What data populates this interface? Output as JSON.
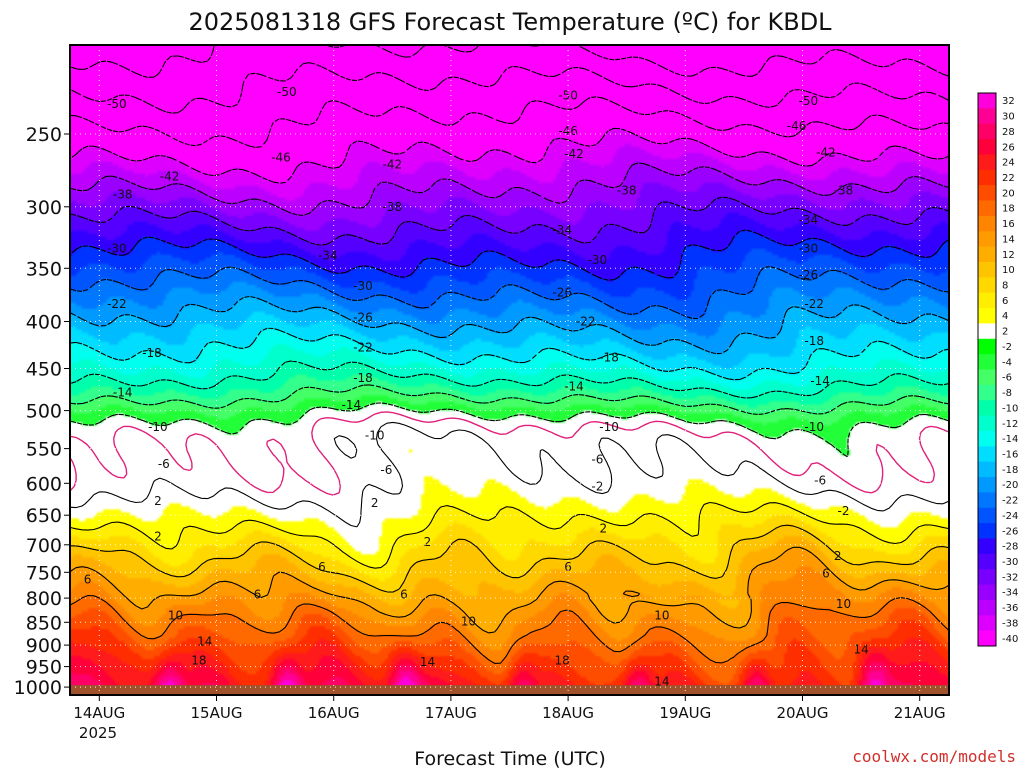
{
  "chart_data": {
    "type": "heatmap",
    "title": "2025081318 GFS Forecast Temperature (ºC) for KBDL",
    "xlabel": "Forecast Time (UTC)",
    "ylabel": "",
    "credit": "coolwx.com/models",
    "x_ticks": [
      "14AUG",
      "15AUG",
      "16AUG",
      "17AUG",
      "18AUG",
      "19AUG",
      "20AUG",
      "21AUG"
    ],
    "x_sublabel": "2025",
    "pressure_ticks": [
      250,
      300,
      350,
      400,
      450,
      500,
      550,
      600,
      650,
      700,
      750,
      800,
      850,
      900,
      950,
      1000
    ],
    "pressure_range": [
      200,
      1020
    ],
    "yscale": "log",
    "grid": "dotted",
    "ground_level_hpa": 1000,
    "colorbar": {
      "placement": "right",
      "levels": [
        32,
        30,
        28,
        26,
        24,
        22,
        20,
        18,
        16,
        14,
        12,
        10,
        8,
        6,
        4,
        2,
        -2,
        -4,
        -6,
        -8,
        -10,
        -12,
        -14,
        -16,
        -18,
        -20,
        -22,
        -24,
        -26,
        -28,
        -30,
        -32,
        -34,
        -36,
        -38,
        -40
      ],
      "colors": [
        "#ff00dd",
        "#ff0095",
        "#ff0066",
        "#ff003a",
        "#ff1b1b",
        "#ff2e00",
        "#ff4d00",
        "#ff6a00",
        "#ff8400",
        "#ff9a00",
        "#ffae00",
        "#ffc400",
        "#ffd800",
        "#ffee00",
        "#ffff00",
        "#ffffff",
        "#00ff00",
        "#22ff38",
        "#44ff66",
        "#33ff8c",
        "#00ffaa",
        "#00ffcc",
        "#00ffee",
        "#00ddff",
        "#00bbff",
        "#0099ff",
        "#0077ff",
        "#0055ff",
        "#0033ff",
        "#3300ff",
        "#5500ff",
        "#7700ff",
        "#9900ff",
        "#bb00ff",
        "#dd00ff",
        "#ff00ff"
      ]
    },
    "contour_levels": [
      -50,
      -46,
      -42,
      -38,
      -34,
      -30,
      -26,
      -22,
      -18,
      -14,
      -10,
      -6,
      -2,
      2,
      6,
      10,
      14,
      18
    ],
    "contour_labels": [
      {
        "t": 0.4,
        "p": 232,
        "v": "-50"
      },
      {
        "t": 1.85,
        "p": 225,
        "v": "-50"
      },
      {
        "t": 4.25,
        "p": 227,
        "v": "-50"
      },
      {
        "t": 6.3,
        "p": 230,
        "v": "-50"
      },
      {
        "t": 1.8,
        "p": 265,
        "v": "-46"
      },
      {
        "t": 4.25,
        "p": 248,
        "v": "-46"
      },
      {
        "t": 6.2,
        "p": 245,
        "v": "-46"
      },
      {
        "t": 0.85,
        "p": 278,
        "v": "-42"
      },
      {
        "t": 2.75,
        "p": 270,
        "v": "-42"
      },
      {
        "t": 4.3,
        "p": 263,
        "v": "-42"
      },
      {
        "t": 6.45,
        "p": 262,
        "v": "-42"
      },
      {
        "t": 0.45,
        "p": 291,
        "v": "-38"
      },
      {
        "t": 2.75,
        "p": 300,
        "v": "-38"
      },
      {
        "t": 4.75,
        "p": 288,
        "v": "-38"
      },
      {
        "t": 6.6,
        "p": 288,
        "v": "-38"
      },
      {
        "t": 2.2,
        "p": 339,
        "v": "-34"
      },
      {
        "t": 4.2,
        "p": 318,
        "v": "-34"
      },
      {
        "t": 6.3,
        "p": 310,
        "v": "-34"
      },
      {
        "t": 0.4,
        "p": 333,
        "v": "-30"
      },
      {
        "t": 2.5,
        "p": 366,
        "v": "-30"
      },
      {
        "t": 4.5,
        "p": 343,
        "v": "-30"
      },
      {
        "t": 6.3,
        "p": 333,
        "v": "-30"
      },
      {
        "t": 2.5,
        "p": 396,
        "v": "-26"
      },
      {
        "t": 4.2,
        "p": 372,
        "v": "-26"
      },
      {
        "t": 6.3,
        "p": 356,
        "v": "-26"
      },
      {
        "t": 0.4,
        "p": 383,
        "v": "-22"
      },
      {
        "t": 2.5,
        "p": 427,
        "v": "-22"
      },
      {
        "t": 4.4,
        "p": 400,
        "v": "-22"
      },
      {
        "t": 6.35,
        "p": 383,
        "v": "-22"
      },
      {
        "t": 0.7,
        "p": 433,
        "v": "-18"
      },
      {
        "t": 2.5,
        "p": 461,
        "v": "-18"
      },
      {
        "t": 4.6,
        "p": 438,
        "v": "-18"
      },
      {
        "t": 6.35,
        "p": 420,
        "v": "-18"
      },
      {
        "t": 0.45,
        "p": 478,
        "v": "-14"
      },
      {
        "t": 2.4,
        "p": 493,
        "v": "-14"
      },
      {
        "t": 4.3,
        "p": 471,
        "v": "-14"
      },
      {
        "t": 6.4,
        "p": 464,
        "v": "-14"
      },
      {
        "t": 0.75,
        "p": 521,
        "v": "-10"
      },
      {
        "t": 2.6,
        "p": 532,
        "v": "-10"
      },
      {
        "t": 4.6,
        "p": 521,
        "v": "-10"
      },
      {
        "t": 6.35,
        "p": 521,
        "v": "-10"
      },
      {
        "t": 0.8,
        "p": 572,
        "v": "-6"
      },
      {
        "t": 2.7,
        "p": 580,
        "v": "-6"
      },
      {
        "t": 4.5,
        "p": 565,
        "v": "-6"
      },
      {
        "t": 6.4,
        "p": 596,
        "v": "-6"
      },
      {
        "t": 4.5,
        "p": 605,
        "v": "-2"
      },
      {
        "t": 6.6,
        "p": 643,
        "v": "-2"
      },
      {
        "t": 0.75,
        "p": 627,
        "v": "2"
      },
      {
        "t": 2.6,
        "p": 630,
        "v": "2"
      },
      {
        "t": 0.75,
        "p": 686,
        "v": "2"
      },
      {
        "t": 3.05,
        "p": 695,
        "v": "2"
      },
      {
        "t": 4.55,
        "p": 672,
        "v": "2"
      },
      {
        "t": 6.55,
        "p": 720,
        "v": "2"
      },
      {
        "t": 0.15,
        "p": 764,
        "v": "6"
      },
      {
        "t": 1.6,
        "p": 793,
        "v": "6"
      },
      {
        "t": 2.15,
        "p": 740,
        "v": "6"
      },
      {
        "t": 2.85,
        "p": 793,
        "v": "6"
      },
      {
        "t": 4.25,
        "p": 740,
        "v": "6"
      },
      {
        "t": 6.45,
        "p": 752,
        "v": "6"
      },
      {
        "t": 0.9,
        "p": 836,
        "v": "10"
      },
      {
        "t": 3.4,
        "p": 848,
        "v": "10"
      },
      {
        "t": 5.05,
        "p": 836,
        "v": "10"
      },
      {
        "t": 6.6,
        "p": 812,
        "v": "10"
      },
      {
        "t": 1.15,
        "p": 892,
        "v": "14"
      },
      {
        "t": 3.05,
        "p": 939,
        "v": "14"
      },
      {
        "t": 5.05,
        "p": 986,
        "v": "14"
      },
      {
        "t": 6.75,
        "p": 910,
        "v": "14"
      },
      {
        "t": 6.0,
        "p": 1070,
        "v": "14"
      },
      {
        "t": 1.1,
        "p": 936,
        "v": "18"
      },
      {
        "t": 4.2,
        "p": 936,
        "v": "18"
      }
    ]
  }
}
